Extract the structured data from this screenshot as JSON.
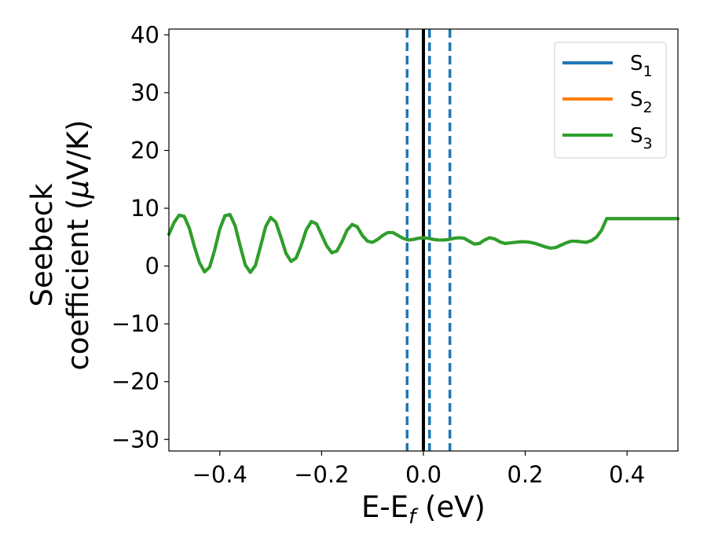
{
  "chart_data": {
    "type": "line",
    "title": "",
    "xlabel": "E-E",
    "xlabel_sub": "f",
    "xlabel_unit": " (eV)",
    "ylabel_line1": "Seebeck",
    "ylabel_line2": "coefficient  (",
    "ylabel_mu": "μ",
    "ylabel_unit": "V/K)",
    "xlim": [
      -0.5,
      0.5
    ],
    "ylim": [
      -32,
      41
    ],
    "xticks": [
      -0.4,
      -0.2,
      0.0,
      0.2,
      0.4
    ],
    "xtick_labels": [
      "−0.4",
      "−0.2",
      "0.0",
      "0.2",
      "0.4"
    ],
    "yticks": [
      -30,
      -20,
      -10,
      0,
      10,
      20,
      30,
      40
    ],
    "ytick_labels": [
      "−30",
      "−20",
      "−10",
      "0",
      "10",
      "20",
      "30",
      "40"
    ],
    "grid": false,
    "legend_position": "top-right",
    "x": [
      -0.5,
      -0.49,
      -0.48,
      -0.47,
      -0.46,
      -0.45,
      -0.44,
      -0.43,
      -0.42,
      -0.41,
      -0.4,
      -0.39,
      -0.38,
      -0.37,
      -0.36,
      -0.35,
      -0.34,
      -0.33,
      -0.32,
      -0.31,
      -0.3,
      -0.29,
      -0.28,
      -0.27,
      -0.26,
      -0.25,
      -0.24,
      -0.23,
      -0.22,
      -0.21,
      -0.2,
      -0.19,
      -0.18,
      -0.17,
      -0.16,
      -0.15,
      -0.14,
      -0.13,
      -0.12,
      -0.11,
      -0.1,
      -0.09,
      -0.08,
      -0.07,
      -0.06,
      -0.05,
      -0.04,
      -0.03,
      -0.02,
      -0.01,
      0.0,
      0.01,
      0.02,
      0.03,
      0.04,
      0.05,
      0.06,
      0.07,
      0.08,
      0.09,
      0.1,
      0.11,
      0.12,
      0.13,
      0.14,
      0.15,
      0.16,
      0.17,
      0.18,
      0.19,
      0.2,
      0.21,
      0.22,
      0.23,
      0.24,
      0.25,
      0.26,
      0.27,
      0.28,
      0.29,
      0.3,
      0.31,
      0.32,
      0.33,
      0.34,
      0.35,
      0.36,
      0.37,
      0.38,
      0.39,
      0.4,
      0.41,
      0.42,
      0.43,
      0.44,
      0.45,
      0.46,
      0.47,
      0.48,
      0.49,
      0.5
    ],
    "series": [
      {
        "name": "S",
        "sub": "1",
        "color": "#1f77b4",
        "values": [
          5.5,
          7.5,
          8.8,
          8.6,
          6.6,
          3.4,
          0.6,
          -1.0,
          -0.2,
          2.8,
          6.4,
          8.7,
          8.9,
          7.0,
          3.5,
          0.2,
          -1.1,
          0.1,
          3.4,
          6.8,
          8.4,
          7.6,
          5.0,
          2.2,
          0.8,
          1.4,
          3.6,
          6.3,
          7.7,
          7.3,
          5.4,
          3.5,
          2.3,
          2.6,
          4.2,
          6.2,
          7.2,
          6.8,
          5.3,
          4.3,
          4.1,
          4.6,
          5.3,
          5.8,
          5.8,
          5.3,
          4.8,
          4.5,
          4.6,
          4.8,
          4.9,
          4.8,
          4.6,
          4.5,
          4.5,
          4.6,
          4.8,
          4.9,
          4.8,
          4.3,
          3.8,
          3.9,
          4.5,
          4.9,
          4.7,
          4.2,
          3.9,
          4.0,
          4.1,
          4.2,
          4.2,
          4.1,
          3.9,
          3.6,
          3.3,
          3.1,
          3.2,
          3.6,
          4.0,
          4.3,
          4.3,
          4.2,
          4.1,
          4.4,
          5.0,
          6.2,
          8.2,
          8.2,
          8.2,
          8.2,
          8.2,
          8.2,
          8.2,
          8.2,
          8.2,
          8.2,
          8.2,
          8.2,
          8.2,
          8.2,
          8.2
        ]
      },
      {
        "name": "S",
        "sub": "2",
        "color": "#ff7f0e",
        "values": [
          5.5,
          7.5,
          8.8,
          8.6,
          6.6,
          3.4,
          0.6,
          -1.0,
          -0.2,
          2.8,
          6.4,
          8.7,
          8.9,
          7.0,
          3.5,
          0.2,
          -1.1,
          0.1,
          3.4,
          6.8,
          8.4,
          7.6,
          5.0,
          2.2,
          0.8,
          1.4,
          3.6,
          6.3,
          7.7,
          7.3,
          5.4,
          3.5,
          2.3,
          2.6,
          4.2,
          6.2,
          7.2,
          6.8,
          5.3,
          4.3,
          4.1,
          4.6,
          5.3,
          5.8,
          5.8,
          5.3,
          4.8,
          4.5,
          4.6,
          4.8,
          4.9,
          4.8,
          4.6,
          4.5,
          4.5,
          4.6,
          4.8,
          4.9,
          4.8,
          4.3,
          3.8,
          3.9,
          4.5,
          4.9,
          4.7,
          4.2,
          3.9,
          4.0,
          4.1,
          4.2,
          4.2,
          4.1,
          3.9,
          3.6,
          3.3,
          3.1,
          3.2,
          3.6,
          4.0,
          4.3,
          4.3,
          4.2,
          4.1,
          4.4,
          5.0,
          6.2,
          8.2,
          8.2,
          8.2,
          8.2,
          8.2,
          8.2,
          8.2,
          8.2,
          8.2,
          8.2,
          8.2,
          8.2,
          8.2,
          8.2,
          8.2
        ]
      },
      {
        "name": "S",
        "sub": "3",
        "color": "#2ca02c",
        "values": [
          5.5,
          7.5,
          8.8,
          8.6,
          6.6,
          3.4,
          0.6,
          -1.0,
          -0.2,
          2.8,
          6.4,
          8.7,
          8.9,
          7.0,
          3.5,
          0.2,
          -1.1,
          0.1,
          3.4,
          6.8,
          8.4,
          7.6,
          5.0,
          2.2,
          0.8,
          1.4,
          3.6,
          6.3,
          7.7,
          7.3,
          5.4,
          3.5,
          2.3,
          2.6,
          4.2,
          6.2,
          7.2,
          6.8,
          5.3,
          4.3,
          4.1,
          4.6,
          5.3,
          5.8,
          5.8,
          5.3,
          4.8,
          4.5,
          4.6,
          4.8,
          4.9,
          4.8,
          4.6,
          4.5,
          4.5,
          4.6,
          4.8,
          4.9,
          4.8,
          4.3,
          3.8,
          3.9,
          4.5,
          4.9,
          4.7,
          4.2,
          3.9,
          4.0,
          4.1,
          4.2,
          4.2,
          4.1,
          3.9,
          3.6,
          3.3,
          3.1,
          3.2,
          3.6,
          4.0,
          4.3,
          4.3,
          4.2,
          4.1,
          4.4,
          5.0,
          6.2,
          8.2,
          8.2,
          8.2,
          8.2,
          8.2,
          8.2,
          8.2,
          8.2,
          8.2,
          8.2,
          8.2,
          8.2,
          8.2,
          8.2,
          8.2
        ]
      }
    ],
    "vlines": [
      {
        "x": -0.032,
        "style": "dashed",
        "color": "#1f77b4"
      },
      {
        "x": 0.0,
        "style": "solid",
        "color": "#000000"
      },
      {
        "x": 0.012,
        "style": "dashed",
        "color": "#1f77b4"
      },
      {
        "x": 0.052,
        "style": "dashed",
        "color": "#1f77b4"
      }
    ]
  }
}
